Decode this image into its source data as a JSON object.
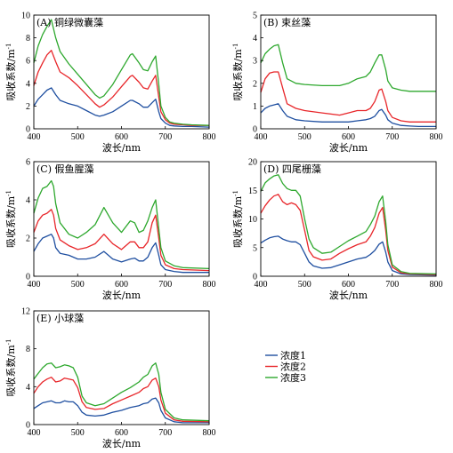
{
  "chart_data": {
    "type": "line",
    "xlabel": "波长/nm",
    "ylabel": "吸收系数/m",
    "ylabel_sup": "-1",
    "xlim": [
      400,
      800
    ],
    "xticks": [
      400,
      500,
      600,
      700,
      800
    ],
    "legend": {
      "placement": "right",
      "entries": [
        {
          "name": "浓度1",
          "color": "#1f4fa0"
        },
        {
          "name": "浓度2",
          "color": "#e8262a"
        },
        {
          "name": "浓度3",
          "color": "#2ea82e"
        }
      ]
    },
    "panels": [
      {
        "title": "(A) 铜绿微囊藻",
        "ylim": [
          0,
          10
        ],
        "yticks": [
          0,
          2,
          4,
          6,
          8,
          10
        ],
        "x": [
          400,
          410,
          420,
          430,
          440,
          450,
          460,
          480,
          500,
          520,
          540,
          550,
          560,
          580,
          600,
          620,
          625,
          640,
          650,
          660,
          670,
          678,
          685,
          690,
          700,
          710,
          720,
          740,
          760,
          800
        ],
        "series": [
          {
            "name": "浓度1",
            "values": [
              2.0,
              2.6,
              3.0,
              3.4,
              3.6,
              3.0,
              2.5,
              2.2,
              2.0,
              1.6,
              1.2,
              1.1,
              1.2,
              1.5,
              2.0,
              2.5,
              2.5,
              2.2,
              1.9,
              1.9,
              2.3,
              2.6,
              1.5,
              0.9,
              0.5,
              0.3,
              0.25,
              0.2,
              0.2,
              0.15
            ]
          },
          {
            "name": "浓度2",
            "values": [
              3.8,
              5.0,
              5.8,
              6.5,
              6.9,
              5.9,
              5.0,
              4.5,
              3.8,
              3.0,
              2.2,
              1.9,
              2.1,
              2.8,
              3.7,
              4.6,
              4.7,
              4.1,
              3.6,
              3.5,
              4.2,
              4.7,
              2.8,
              1.5,
              0.8,
              0.5,
              0.4,
              0.35,
              0.3,
              0.3
            ]
          },
          {
            "name": "浓度3",
            "values": [
              5.8,
              7.3,
              8.3,
              9.0,
              9.6,
              8.0,
              6.8,
              5.7,
              4.8,
              3.9,
              3.0,
              2.7,
              2.9,
              3.9,
              5.2,
              6.5,
              6.6,
              5.8,
              5.2,
              5.1,
              5.9,
              6.4,
              3.9,
              2.0,
              1.0,
              0.6,
              0.5,
              0.4,
              0.35,
              0.3
            ]
          }
        ]
      },
      {
        "title": "(B) 束丝藻",
        "ylim": [
          0,
          5
        ],
        "yticks": [
          0,
          1,
          2,
          3,
          4,
          5
        ],
        "x": [
          400,
          410,
          420,
          430,
          440,
          450,
          460,
          480,
          500,
          540,
          580,
          600,
          620,
          640,
          650,
          660,
          670,
          676,
          685,
          690,
          700,
          720,
          740,
          760,
          800
        ],
        "series": [
          {
            "name": "浓度1",
            "values": [
              0.7,
              0.9,
              1.0,
              1.05,
              1.1,
              0.8,
              0.55,
              0.4,
              0.35,
              0.3,
              0.3,
              0.3,
              0.35,
              0.4,
              0.45,
              0.55,
              0.8,
              0.85,
              0.6,
              0.4,
              0.25,
              0.15,
              0.12,
              0.1,
              0.1
            ]
          },
          {
            "name": "浓度2",
            "values": [
              1.6,
              2.2,
              2.45,
              2.5,
              2.5,
              1.8,
              1.1,
              0.9,
              0.8,
              0.7,
              0.6,
              0.7,
              0.8,
              0.8,
              0.9,
              1.2,
              1.7,
              1.75,
              1.2,
              0.8,
              0.5,
              0.35,
              0.3,
              0.3,
              0.3
            ]
          },
          {
            "name": "浓度3",
            "values": [
              2.9,
              3.3,
              3.5,
              3.65,
              3.7,
              2.9,
              2.2,
              2.0,
              1.95,
              1.9,
              1.9,
              2.0,
              2.2,
              2.3,
              2.5,
              2.9,
              3.25,
              3.25,
              2.6,
              2.1,
              1.8,
              1.7,
              1.65,
              1.65,
              1.65
            ]
          }
        ]
      },
      {
        "title": "(C) 假鱼腥藻",
        "ylim": [
          0,
          6
        ],
        "yticks": [
          0,
          2,
          4,
          6
        ],
        "x": [
          400,
          410,
          420,
          430,
          440,
          445,
          450,
          460,
          480,
          500,
          520,
          540,
          560,
          580,
          600,
          620,
          630,
          640,
          650,
          660,
          670,
          678,
          685,
          690,
          700,
          720,
          740,
          800
        ],
        "series": [
          {
            "name": "浓度1",
            "values": [
              1.3,
              1.7,
              2.0,
              2.1,
              2.2,
              2.0,
              1.5,
              1.2,
              1.1,
              0.9,
              0.9,
              1.0,
              1.3,
              0.9,
              0.75,
              0.9,
              0.95,
              0.8,
              0.8,
              1.0,
              1.5,
              1.75,
              1.1,
              0.6,
              0.35,
              0.25,
              0.2,
              0.2
            ]
          },
          {
            "name": "浓度2",
            "values": [
              2.3,
              2.9,
              3.2,
              3.3,
              3.5,
              3.2,
              2.5,
              1.9,
              1.6,
              1.4,
              1.5,
              1.7,
              2.2,
              1.7,
              1.4,
              1.8,
              1.8,
              1.5,
              1.5,
              1.8,
              2.8,
              3.2,
              2.0,
              1.1,
              0.6,
              0.4,
              0.35,
              0.3
            ]
          },
          {
            "name": "浓度3",
            "values": [
              3.3,
              4.1,
              4.6,
              4.7,
              5.0,
              4.7,
              3.8,
              2.8,
              2.2,
              2.0,
              2.3,
              2.7,
              3.6,
              2.8,
              2.3,
              2.9,
              2.8,
              2.3,
              2.4,
              2.9,
              3.6,
              4.0,
              2.5,
              1.5,
              0.8,
              0.55,
              0.45,
              0.4
            ]
          }
        ]
      },
      {
        "title": "(D) 四尾栅藻",
        "ylim": [
          0,
          20
        ],
        "yticks": [
          0,
          5,
          10,
          15,
          20
        ],
        "x": [
          400,
          410,
          420,
          430,
          440,
          450,
          460,
          470,
          480,
          490,
          500,
          510,
          520,
          540,
          560,
          580,
          600,
          620,
          640,
          650,
          660,
          670,
          678,
          685,
          690,
          700,
          720,
          740,
          800
        ],
        "series": [
          {
            "name": "浓度1",
            "values": [
              5.8,
              6.3,
              6.7,
              6.9,
              7.0,
              6.5,
              6.2,
              6.0,
              6.0,
              5.5,
              4.0,
              2.5,
              1.8,
              1.4,
              1.5,
              2.0,
              2.5,
              3.0,
              3.3,
              3.8,
              4.5,
              5.6,
              6.0,
              4.2,
              2.5,
              1.0,
              0.4,
              0.3,
              0.2
            ]
          },
          {
            "name": "浓度2",
            "values": [
              11.0,
              12.3,
              13.3,
              14.0,
              14.3,
              13.0,
              12.5,
              12.8,
              12.5,
              11.5,
              8.0,
              4.5,
              3.4,
              2.8,
              3.0,
              4.0,
              4.8,
              5.5,
              6.0,
              7.0,
              8.5,
              11.0,
              12.0,
              8.0,
              4.5,
              1.6,
              0.6,
              0.4,
              0.3
            ]
          },
          {
            "name": "浓度3",
            "values": [
              14.8,
              16.3,
              17.0,
              17.5,
              17.7,
              16.2,
              15.3,
              15.0,
              15.0,
              14.0,
              10.0,
              6.5,
              5.0,
              4.0,
              4.2,
              5.2,
              6.2,
              7.0,
              7.8,
              9.0,
              10.5,
              13.0,
              14.0,
              9.5,
              5.5,
              2.0,
              0.8,
              0.5,
              0.4
            ]
          }
        ]
      },
      {
        "title": "(E) 小球藻",
        "ylim": [
          0,
          12
        ],
        "yticks": [
          0,
          4,
          8,
          12
        ],
        "x": [
          400,
          410,
          420,
          430,
          440,
          450,
          460,
          470,
          480,
          490,
          500,
          510,
          520,
          540,
          560,
          580,
          600,
          620,
          640,
          650,
          660,
          670,
          678,
          685,
          690,
          700,
          720,
          740,
          800
        ],
        "series": [
          {
            "name": "浓度1",
            "values": [
              1.7,
              2.0,
              2.3,
              2.4,
              2.5,
              2.3,
              2.3,
              2.5,
              2.4,
              2.4,
              2.0,
              1.3,
              1.0,
              0.9,
              1.0,
              1.3,
              1.5,
              1.8,
              2.0,
              2.2,
              2.3,
              2.7,
              2.8,
              2.3,
              1.5,
              0.7,
              0.3,
              0.2,
              0.2
            ]
          },
          {
            "name": "浓度2",
            "values": [
              3.3,
              4.0,
              4.5,
              4.8,
              5.0,
              4.5,
              4.6,
              4.9,
              4.8,
              4.7,
              3.9,
              2.4,
              1.8,
              1.6,
              1.7,
              2.2,
              2.6,
              3.0,
              3.4,
              3.8,
              4.0,
              4.7,
              4.9,
              4.0,
              2.6,
              1.2,
              0.5,
              0.35,
              0.3
            ]
          },
          {
            "name": "浓度3",
            "values": [
              4.8,
              5.4,
              6.0,
              6.4,
              6.5,
              6.0,
              6.1,
              6.3,
              6.2,
              6.0,
              5.0,
              3.0,
              2.3,
              2.0,
              2.2,
              2.8,
              3.4,
              3.9,
              4.5,
              5.0,
              5.3,
              6.2,
              6.5,
              5.3,
              3.4,
              1.6,
              0.7,
              0.5,
              0.4
            ]
          }
        ]
      }
    ]
  }
}
